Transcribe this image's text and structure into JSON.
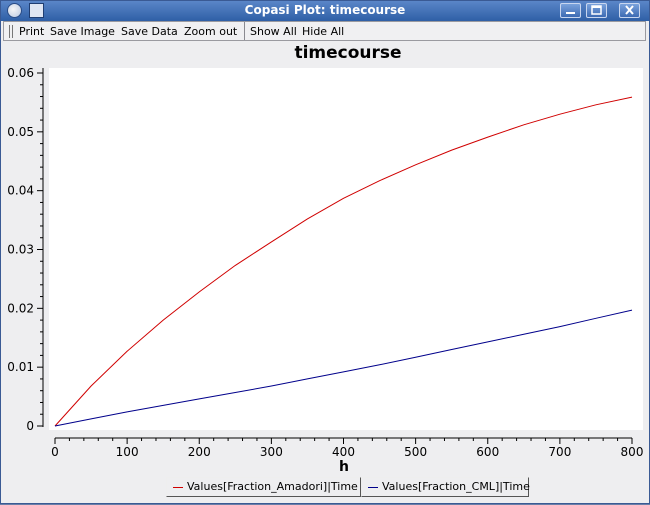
{
  "window": {
    "title": "Copasi Plot: timecourse"
  },
  "toolbar": {
    "print_label": "Print",
    "save_image_label": "Save Image",
    "save_data_label": "Save Data",
    "zoom_out_label": "Zoom out",
    "show_all_label": "Show All",
    "hide_all_label": "Hide All"
  },
  "icons": {
    "app": "copasi-app-icon",
    "sticky": "sticky-window-icon",
    "minimize": "minimize-icon",
    "maximize": "maximize-icon",
    "close": "close-icon"
  },
  "colors": {
    "amadori": "#d00000",
    "cml": "#00008b",
    "titlebar": "#3f6fb8"
  },
  "chart_data": {
    "type": "line",
    "title": "timecourse",
    "xlabel": "h",
    "ylabel": "",
    "xlim": [
      0,
      800
    ],
    "ylim": [
      0,
      0.06
    ],
    "x_ticks": [
      "0",
      "100",
      "200",
      "300",
      "400",
      "500",
      "600",
      "700",
      "800"
    ],
    "y_ticks": [
      "0",
      "0.01",
      "0.02",
      "0.03",
      "0.04",
      "0.05",
      "0.06"
    ],
    "grid": false,
    "legend_position": "bottom",
    "series": [
      {
        "name": "Values[Fraction_Amadori]|Time",
        "color": "#d00000",
        "x": [
          0,
          50,
          100,
          150,
          200,
          250,
          300,
          350,
          400,
          450,
          500,
          550,
          600,
          650,
          700,
          750,
          800
        ],
        "y": [
          0,
          0.0068,
          0.0127,
          0.018,
          0.0228,
          0.0273,
          0.0313,
          0.0352,
          0.0387,
          0.0417,
          0.0444,
          0.0469,
          0.0491,
          0.0512,
          0.053,
          0.0546,
          0.0559
        ]
      },
      {
        "name": "Values[Fraction_CML]|Time",
        "color": "#00008b",
        "x": [
          0,
          50,
          100,
          150,
          200,
          250,
          300,
          350,
          400,
          450,
          500,
          550,
          600,
          650,
          700,
          750,
          800
        ],
        "y": [
          0,
          0.0012,
          0.0024,
          0.0035,
          0.0046,
          0.0057,
          0.0068,
          0.008,
          0.0092,
          0.0104,
          0.0117,
          0.013,
          0.0143,
          0.0156,
          0.0169,
          0.0183,
          0.0197
        ]
      }
    ]
  }
}
